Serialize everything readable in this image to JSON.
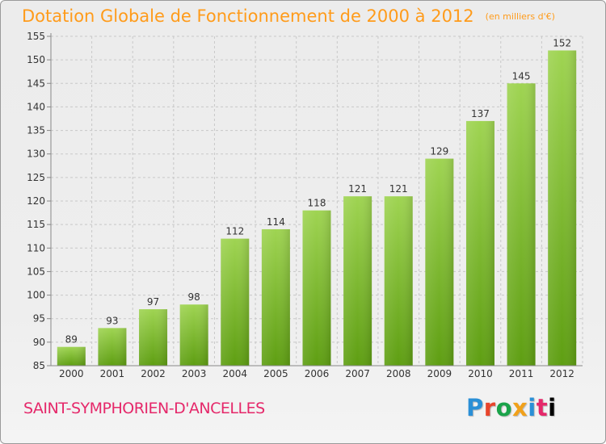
{
  "header": {
    "title": "Dotation Globale de Fonctionnement de 2000 à 2012",
    "unit": "(en milliers d'€)"
  },
  "footer": {
    "commune": "SAINT-SYMPHORIEN-D'ANCELLES",
    "logo": "Proxiti"
  },
  "colors": {
    "title": "#ff9b1a",
    "commune": "#e5286a",
    "bar_light": "#9fd452",
    "bar_dark": "#5e9e12",
    "grid": "#c8c8c8"
  },
  "chart_data": {
    "type": "bar",
    "title": "Dotation Globale de Fonctionnement de 2000 à 2012",
    "subtitle": "(en milliers d'€)",
    "categories": [
      "2000",
      "2001",
      "2002",
      "2003",
      "2004",
      "2005",
      "2006",
      "2007",
      "2008",
      "2009",
      "2010",
      "2011",
      "2012"
    ],
    "values": [
      89,
      93,
      97,
      98,
      112,
      114,
      118,
      121,
      121,
      129,
      137,
      145,
      152
    ],
    "ylim": [
      85,
      155
    ],
    "yticks": [
      85,
      90,
      95,
      100,
      105,
      110,
      115,
      120,
      125,
      130,
      135,
      140,
      145,
      150,
      155
    ],
    "grid": true,
    "data_labels": true,
    "legend": "none"
  }
}
